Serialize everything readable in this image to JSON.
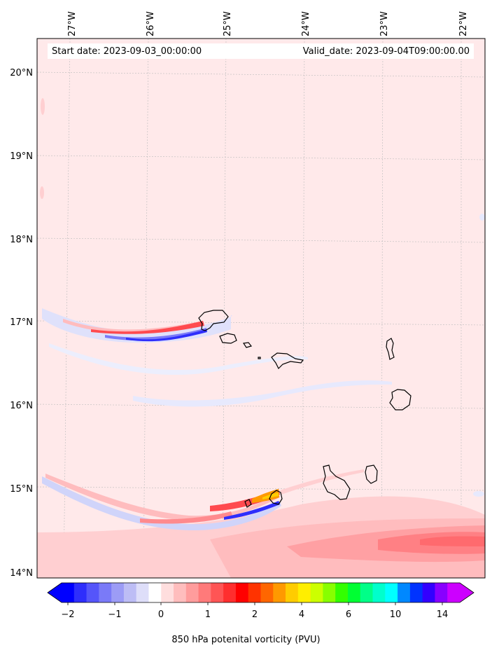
{
  "map": {
    "start_date": "Start date: 2023-09-03_00:00:00",
    "valid_date": "Valid_date: 2023-09-04T09:00:00.00",
    "lon_labels": [
      "27°W",
      "26°W",
      "25°W",
      "24°W",
      "23°W",
      "22°W"
    ],
    "lat_labels": [
      "20°N",
      "19°N",
      "18°N",
      "17°N",
      "16°N",
      "15°N",
      "14°N"
    ],
    "background_color": "#ffe9ea",
    "field": "850 hPa potential vorticity",
    "gridlines": true
  },
  "colorbar": {
    "title": "850 hPa potenital vorticity (PVU)",
    "tick_labels": [
      "−2",
      "−1",
      "0",
      "1",
      "2",
      "4",
      "6",
      "10",
      "14"
    ],
    "extend": "both",
    "colors": [
      "#0000ff",
      "#2e2efc",
      "#5555fa",
      "#7a7af8",
      "#9c9cf6",
      "#bdbdf5",
      "#dedef9",
      "#ffffff",
      "#ffdede",
      "#ffbdbd",
      "#ff9c9c",
      "#ff7a7a",
      "#ff5555",
      "#ff2e2e",
      "#ff0000",
      "#ff3300",
      "#ff6600",
      "#ff9900",
      "#ffcc00",
      "#ffee00",
      "#ccff00",
      "#88ff00",
      "#33ff00",
      "#00ff33",
      "#00ff88",
      "#00ffcc",
      "#00ffff",
      "#0088ff",
      "#0033ff",
      "#3300ff",
      "#8800ff",
      "#cc00ff"
    ],
    "over_color": "#cc00ff",
    "under_color": "#0000ff"
  }
}
